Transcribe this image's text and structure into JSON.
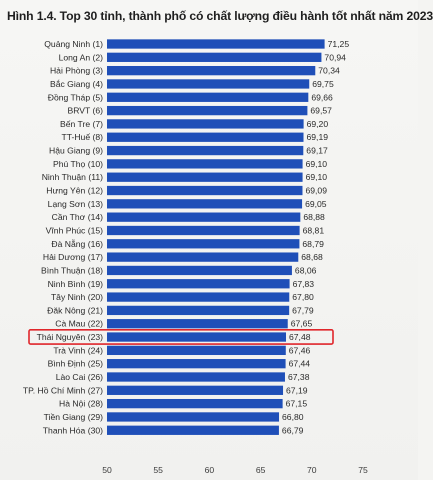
{
  "chart_data": {
    "type": "bar",
    "orientation": "horizontal",
    "title": "Hình 1.4. Top 30 tỉnh, thành phố có chất lượng điều hành tốt nhất năm 2023",
    "categories": [
      "Quảng Ninh (1)",
      "Long An (2)",
      "Hải Phòng (3)",
      "Bắc Giang (4)",
      "Đồng Tháp (5)",
      "BRVT (6)",
      "Bến Tre (7)",
      "TT-Huế (8)",
      "Hậu Giang (9)",
      "Phú Thọ (10)",
      "Ninh Thuận (11)",
      "Hưng Yên (12)",
      "Lạng Sơn (13)",
      "Cần Thơ (14)",
      "Vĩnh Phúc (15)",
      "Đà Nẵng (16)",
      "Hải Dương (17)",
      "Bình Thuận (18)",
      "Ninh Bình (19)",
      "Tây Ninh (20)",
      "Đăk Nông (21)",
      "Cà Mau (22)",
      "Thái Nguyên (23)",
      "Trà Vinh (24)",
      "Bình Định (25)",
      "Lào Cai (26)",
      "TP. Hồ Chí Minh (27)",
      "Hà Nội (28)",
      "Tiền Giang (29)",
      "Thanh Hóa (30)"
    ],
    "values": [
      71.25,
      70.94,
      70.34,
      69.75,
      69.66,
      69.57,
      69.2,
      69.19,
      69.17,
      69.1,
      69.1,
      69.09,
      69.05,
      68.88,
      68.81,
      68.79,
      68.68,
      68.06,
      67.83,
      67.8,
      67.79,
      67.65,
      67.48,
      67.46,
      67.44,
      67.38,
      67.19,
      67.15,
      66.8,
      66.79
    ],
    "value_labels": [
      "71,25",
      "70,94",
      "70,34",
      "69,75",
      "69,66",
      "69,57",
      "69,20",
      "69,19",
      "69,17",
      "69,10",
      "69,10",
      "69,09",
      "69,05",
      "68,88",
      "68,81",
      "68,79",
      "68,68",
      "68,06",
      "67,83",
      "67,80",
      "67,79",
      "67,65",
      "67,48",
      "67,46",
      "67,44",
      "67,38",
      "67,19",
      "67,15",
      "66,80",
      "66,79"
    ],
    "xlim": [
      50,
      75
    ],
    "xticks": [
      50,
      55,
      60,
      65,
      70,
      75
    ],
    "xtick_labels": [
      "50",
      "55",
      "60",
      "65",
      "70",
      "75"
    ],
    "highlighted_category": "Thái Nguyên (23)",
    "bar_color": "#1f4fb8",
    "highlight_color": "#e0262b",
    "grid": false,
    "legend": "none"
  }
}
